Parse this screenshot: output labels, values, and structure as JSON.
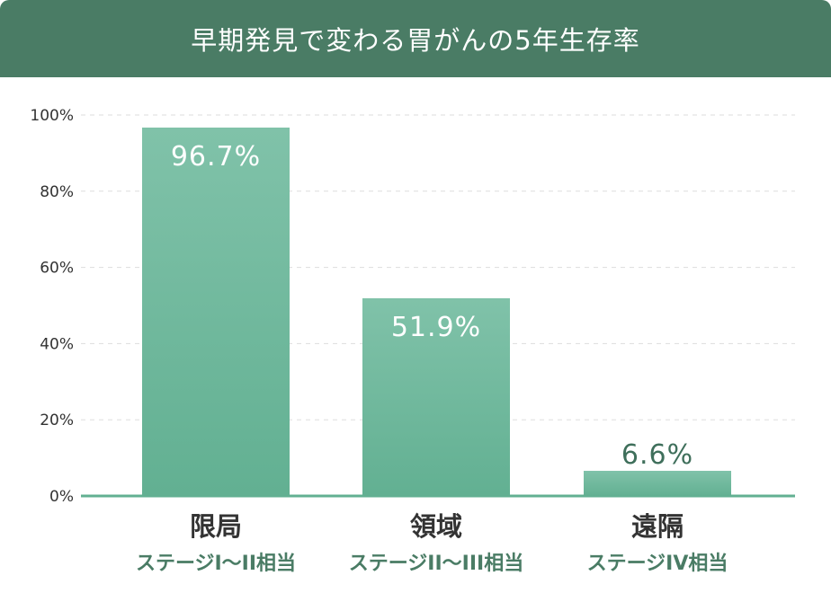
{
  "title": "早期発見で変わる胃がんの5年生存率",
  "colors": {
    "header_bg": "#4a7c65",
    "bar_top": "#80c2a9",
    "bar_bottom": "#62b092",
    "axis": "#62b092",
    "inside_label": "#ffffff",
    "outside_label": "#3f6f5b",
    "sub_label": "#4a7c65"
  },
  "chart_data": {
    "type": "bar",
    "categories": [
      "限局",
      "領域",
      "遠隔"
    ],
    "stage_labels": [
      "ステージI〜II相当",
      "ステージII〜III相当",
      "ステージIV相当"
    ],
    "values": [
      96.7,
      51.9,
      6.6
    ],
    "value_labels": [
      "96.7%",
      "51.9%",
      "6.6%"
    ],
    "ylim": [
      0,
      100
    ],
    "yticks": [
      0,
      20,
      40,
      60,
      80,
      100
    ],
    "ytick_labels": [
      "0%",
      "20%",
      "40%",
      "60%",
      "80%",
      "100%"
    ],
    "grid": true,
    "xlabel": "",
    "ylabel": ""
  }
}
